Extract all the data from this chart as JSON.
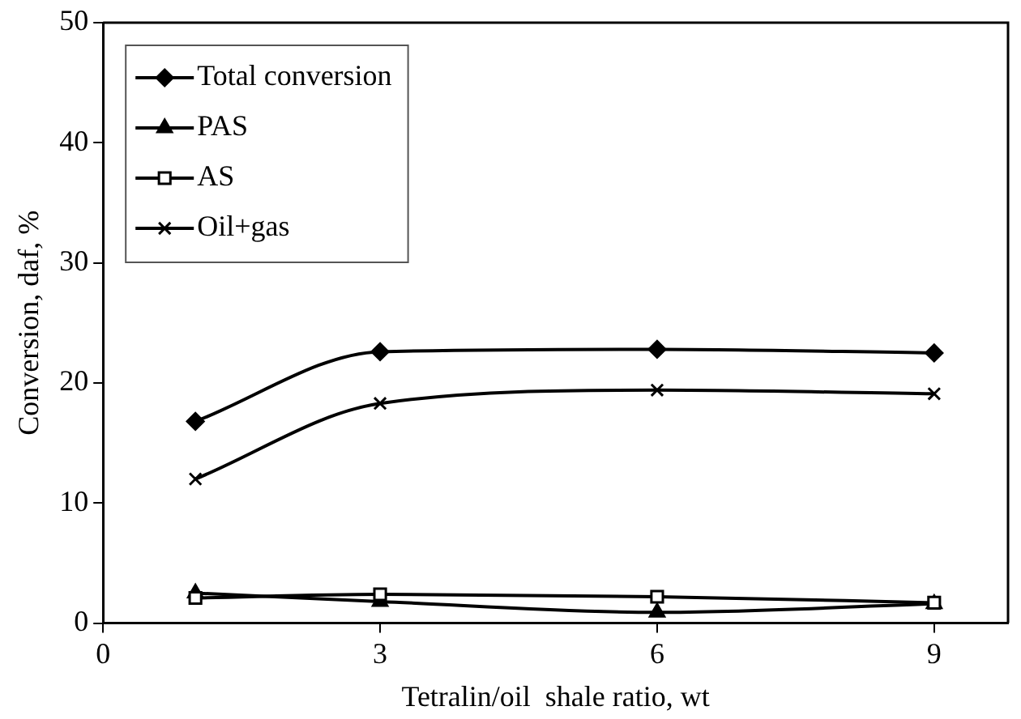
{
  "chart_data": {
    "type": "line",
    "xlabel": "Tetralin/oil  shale ratio, wt",
    "ylabel": "Conversion, daf, %",
    "x": [
      1,
      3,
      6,
      9
    ],
    "xlim": [
      0,
      9.8
    ],
    "xticks": [
      0,
      3,
      6,
      9
    ],
    "ylim": [
      0,
      50
    ],
    "yticks": [
      0,
      10,
      20,
      30,
      40,
      50
    ],
    "grid": false,
    "legend": "top left",
    "line_style": "solid",
    "series": [
      {
        "name": "Total conversion",
        "color": "#000000",
        "marker": "diamond",
        "values": [
          16.8,
          22.6,
          22.8,
          22.5
        ]
      },
      {
        "name": "PAS",
        "color": "#000000",
        "marker": "triangle",
        "values": [
          2.5,
          1.8,
          0.9,
          1.6
        ]
      },
      {
        "name": "AS",
        "color": "#000000",
        "marker": "square",
        "values": [
          2.1,
          2.4,
          2.2,
          1.7
        ]
      },
      {
        "name": "Oil+gas",
        "color": "#000000",
        "marker": "cross",
        "values": [
          12.0,
          18.3,
          19.4,
          19.1
        ]
      }
    ]
  }
}
